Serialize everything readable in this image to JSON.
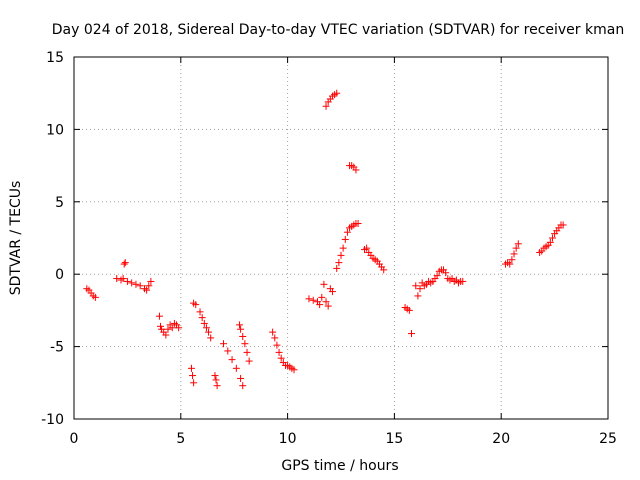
{
  "chart_data": {
    "type": "scatter",
    "title": "Day 024 of 2018, Sidereal Day-to-day VTEC variation (SDTVAR) for receiver kman",
    "xlabel": "GPS time / hours",
    "ylabel": "SDTVAR / TECUs",
    "xlim": [
      0,
      25
    ],
    "ylim": [
      -10,
      15
    ],
    "xticks": [
      0,
      5,
      10,
      15,
      20,
      25
    ],
    "yticks": [
      -10,
      -5,
      0,
      5,
      10,
      15
    ],
    "xtick_labels": [
      "0",
      "5",
      "10",
      "15",
      "20",
      "25"
    ],
    "ytick_labels": [
      "-10",
      "-5",
      "0",
      "5",
      "10",
      "15"
    ],
    "grid": true,
    "marker": "+",
    "color": "#ff0000",
    "series": [
      {
        "name": "SDTVAR",
        "points": [
          [
            0.6,
            -1.0
          ],
          [
            0.7,
            -1.1
          ],
          [
            0.8,
            -1.3
          ],
          [
            0.9,
            -1.5
          ],
          [
            1.0,
            -1.6
          ],
          [
            2.0,
            -0.3
          ],
          [
            2.2,
            -0.4
          ],
          [
            2.3,
            -0.3
          ],
          [
            2.35,
            0.7
          ],
          [
            2.4,
            0.8
          ],
          [
            2.5,
            -0.5
          ],
          [
            2.7,
            -0.6
          ],
          [
            2.9,
            -0.7
          ],
          [
            3.1,
            -0.8
          ],
          [
            3.3,
            -1.0
          ],
          [
            3.4,
            -1.1
          ],
          [
            3.5,
            -0.8
          ],
          [
            3.6,
            -0.5
          ],
          [
            4.0,
            -2.9
          ],
          [
            4.05,
            -3.6
          ],
          [
            4.1,
            -3.8
          ],
          [
            4.2,
            -4.0
          ],
          [
            4.3,
            -4.2
          ],
          [
            4.4,
            -3.8
          ],
          [
            4.5,
            -3.5
          ],
          [
            4.6,
            -3.7
          ],
          [
            4.7,
            -3.4
          ],
          [
            4.8,
            -3.5
          ],
          [
            4.9,
            -3.7
          ],
          [
            5.5,
            -6.5
          ],
          [
            5.55,
            -7.0
          ],
          [
            5.6,
            -7.5
          ],
          [
            5.6,
            -2.0
          ],
          [
            5.7,
            -2.1
          ],
          [
            5.9,
            -2.6
          ],
          [
            6.0,
            -3.0
          ],
          [
            6.1,
            -3.4
          ],
          [
            6.2,
            -3.7
          ],
          [
            6.3,
            -4.0
          ],
          [
            6.4,
            -4.4
          ],
          [
            6.6,
            -7.0
          ],
          [
            6.65,
            -7.3
          ],
          [
            6.7,
            -7.7
          ],
          [
            7.0,
            -4.8
          ],
          [
            7.2,
            -5.3
          ],
          [
            7.4,
            -5.9
          ],
          [
            7.6,
            -6.5
          ],
          [
            7.8,
            -7.2
          ],
          [
            7.9,
            -7.7
          ],
          [
            7.75,
            -3.5
          ],
          [
            7.8,
            -3.8
          ],
          [
            7.9,
            -4.3
          ],
          [
            8.0,
            -4.8
          ],
          [
            8.1,
            -5.4
          ],
          [
            8.2,
            -6.0
          ],
          [
            9.3,
            -4.0
          ],
          [
            9.4,
            -4.4
          ],
          [
            9.5,
            -4.9
          ],
          [
            9.6,
            -5.4
          ],
          [
            9.7,
            -5.8
          ],
          [
            9.8,
            -6.1
          ],
          [
            9.9,
            -6.3
          ],
          [
            10.0,
            -6.3
          ],
          [
            10.1,
            -6.4
          ],
          [
            10.2,
            -6.5
          ],
          [
            10.3,
            -6.6
          ],
          [
            11.0,
            -1.7
          ],
          [
            11.2,
            -1.8
          ],
          [
            11.4,
            -1.9
          ],
          [
            11.5,
            -2.1
          ],
          [
            11.6,
            -1.6
          ],
          [
            11.7,
            -0.7
          ],
          [
            11.8,
            -1.9
          ],
          [
            11.9,
            -2.2
          ],
          [
            12.0,
            -1.0
          ],
          [
            12.1,
            -1.2
          ],
          [
            11.8,
            11.6
          ],
          [
            11.9,
            11.9
          ],
          [
            12.0,
            12.1
          ],
          [
            12.1,
            12.3
          ],
          [
            12.2,
            12.4
          ],
          [
            12.3,
            12.5
          ],
          [
            12.3,
            0.4
          ],
          [
            12.4,
            0.8
          ],
          [
            12.5,
            1.3
          ],
          [
            12.6,
            1.8
          ],
          [
            12.7,
            2.4
          ],
          [
            12.8,
            2.9
          ],
          [
            12.9,
            3.2
          ],
          [
            13.0,
            3.3
          ],
          [
            13.1,
            3.4
          ],
          [
            13.2,
            3.5
          ],
          [
            13.3,
            3.5
          ],
          [
            12.9,
            7.5
          ],
          [
            13.0,
            7.5
          ],
          [
            13.1,
            7.4
          ],
          [
            13.2,
            7.2
          ],
          [
            13.6,
            1.7
          ],
          [
            13.7,
            1.8
          ],
          [
            13.8,
            1.5
          ],
          [
            13.9,
            1.3
          ],
          [
            14.0,
            1.1
          ],
          [
            14.1,
            1.0
          ],
          [
            14.2,
            0.9
          ],
          [
            14.3,
            0.7
          ],
          [
            14.4,
            0.5
          ],
          [
            14.5,
            0.3
          ],
          [
            15.5,
            -2.3
          ],
          [
            15.6,
            -2.4
          ],
          [
            15.7,
            -2.5
          ],
          [
            15.8,
            -4.1
          ],
          [
            16.0,
            -0.8
          ],
          [
            16.1,
            -1.5
          ],
          [
            16.2,
            -1.0
          ],
          [
            16.3,
            -0.6
          ],
          [
            16.4,
            -0.8
          ],
          [
            16.5,
            -0.7
          ],
          [
            16.6,
            -0.5
          ],
          [
            16.7,
            -0.6
          ],
          [
            16.8,
            -0.5
          ],
          [
            16.9,
            -0.3
          ],
          [
            17.0,
            -0.1
          ],
          [
            17.1,
            0.2
          ],
          [
            17.2,
            0.3
          ],
          [
            17.3,
            0.3
          ],
          [
            17.4,
            0.1
          ],
          [
            17.5,
            -0.3
          ],
          [
            17.6,
            -0.4
          ],
          [
            17.7,
            -0.3
          ],
          [
            17.8,
            -0.5
          ],
          [
            17.9,
            -0.4
          ],
          [
            18.0,
            -0.6
          ],
          [
            18.1,
            -0.5
          ],
          [
            18.2,
            -0.5
          ],
          [
            20.2,
            0.7
          ],
          [
            20.3,
            0.8
          ],
          [
            20.4,
            0.7
          ],
          [
            20.5,
            1.0
          ],
          [
            20.6,
            1.4
          ],
          [
            20.7,
            1.8
          ],
          [
            20.8,
            2.1
          ],
          [
            21.8,
            1.5
          ],
          [
            21.9,
            1.6
          ],
          [
            22.0,
            1.8
          ],
          [
            22.1,
            1.9
          ],
          [
            22.2,
            2.0
          ],
          [
            22.3,
            2.2
          ],
          [
            22.4,
            2.5
          ],
          [
            22.5,
            2.8
          ],
          [
            22.6,
            3.0
          ],
          [
            22.7,
            3.2
          ],
          [
            22.8,
            3.4
          ],
          [
            22.9,
            3.4
          ]
        ]
      }
    ]
  }
}
